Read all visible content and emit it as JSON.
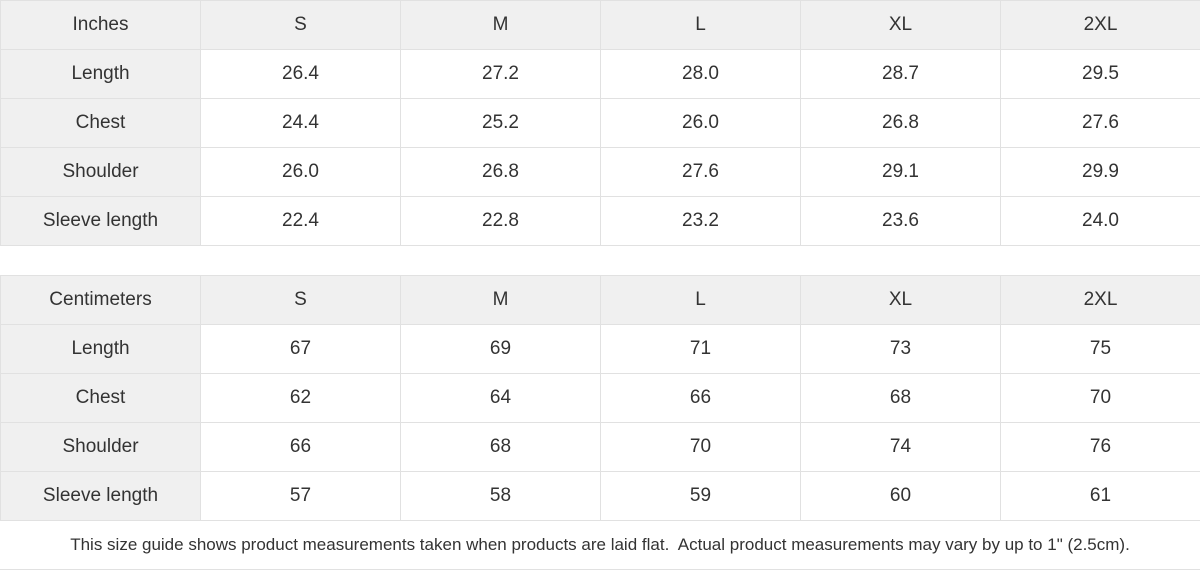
{
  "tables": [
    {
      "unit_label": "Inches",
      "sizes": [
        "S",
        "M",
        "L",
        "XL",
        "2XL"
      ],
      "rows": [
        {
          "label": "Length",
          "values": [
            "26.4",
            "27.2",
            "28.0",
            "28.7",
            "29.5"
          ]
        },
        {
          "label": "Chest",
          "values": [
            "24.4",
            "25.2",
            "26.0",
            "26.8",
            "27.6"
          ]
        },
        {
          "label": "Shoulder",
          "values": [
            "26.0",
            "26.8",
            "27.6",
            "29.1",
            "29.9"
          ]
        },
        {
          "label": "Sleeve length",
          "values": [
            "22.4",
            "22.8",
            "23.2",
            "23.6",
            "24.0"
          ]
        }
      ]
    },
    {
      "unit_label": "Centimeters",
      "sizes": [
        "S",
        "M",
        "L",
        "XL",
        "2XL"
      ],
      "rows": [
        {
          "label": "Length",
          "values": [
            "67",
            "69",
            "71",
            "73",
            "75"
          ]
        },
        {
          "label": "Chest",
          "values": [
            "62",
            "64",
            "66",
            "68",
            "70"
          ]
        },
        {
          "label": "Shoulder",
          "values": [
            "66",
            "68",
            "70",
            "74",
            "76"
          ]
        },
        {
          "label": "Sleeve length",
          "values": [
            "57",
            "58",
            "59",
            "60",
            "61"
          ]
        }
      ]
    }
  ],
  "footer": {
    "note": "This size guide shows product measurements taken when products are laid flat.  Actual product measurements may vary by up to 1\" (2.5cm)."
  },
  "colors": {
    "background": "#ffffff",
    "header_bg": "#f0f0f0",
    "border": "#e1e1e1",
    "text": "#333333"
  }
}
